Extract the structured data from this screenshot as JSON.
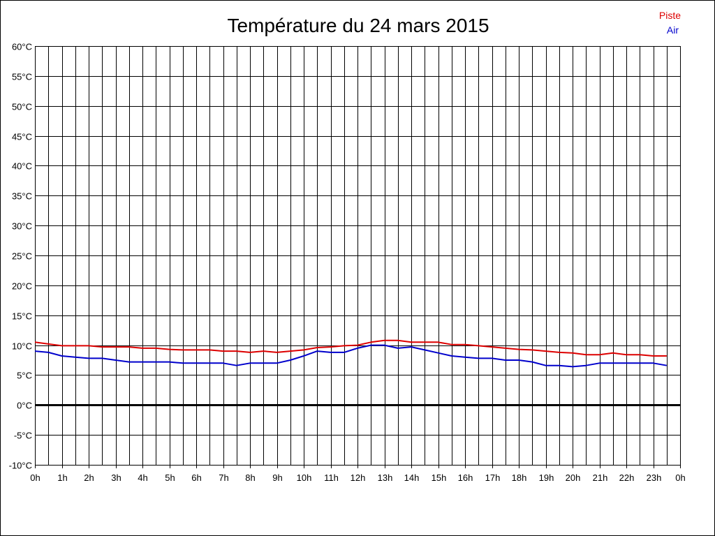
{
  "chart_data": {
    "type": "line",
    "title": "Température du 24 mars 2015",
    "xlabel": "",
    "ylabel": "",
    "ylim": [
      -10,
      60
    ],
    "xlim": [
      0,
      24
    ],
    "grid": true,
    "legend_position": "top-right",
    "y_ticks": [
      {
        "value": 60,
        "label": "60°C"
      },
      {
        "value": 55,
        "label": "55°C"
      },
      {
        "value": 50,
        "label": "50°C"
      },
      {
        "value": 45,
        "label": "45°C"
      },
      {
        "value": 40,
        "label": "40°C"
      },
      {
        "value": 35,
        "label": "35°C"
      },
      {
        "value": 30,
        "label": "30°C"
      },
      {
        "value": 25,
        "label": "25°C"
      },
      {
        "value": 20,
        "label": "20°C"
      },
      {
        "value": 15,
        "label": "15°C"
      },
      {
        "value": 10,
        "label": "10°C"
      },
      {
        "value": 5,
        "label": "5°C"
      },
      {
        "value": 0,
        "label": "0°C"
      },
      {
        "value": -5,
        "label": "-5°C"
      },
      {
        "value": -10,
        "label": "-10°C"
      }
    ],
    "x_ticks": [
      {
        "value": 0,
        "label": "0h"
      },
      {
        "value": 1,
        "label": "1h"
      },
      {
        "value": 2,
        "label": "2h"
      },
      {
        "value": 3,
        "label": "3h"
      },
      {
        "value": 4,
        "label": "4h"
      },
      {
        "value": 5,
        "label": "5h"
      },
      {
        "value": 6,
        "label": "6h"
      },
      {
        "value": 7,
        "label": "7h"
      },
      {
        "value": 8,
        "label": "8h"
      },
      {
        "value": 9,
        "label": "9h"
      },
      {
        "value": 10,
        "label": "10h"
      },
      {
        "value": 11,
        "label": "11h"
      },
      {
        "value": 12,
        "label": "12h"
      },
      {
        "value": 13,
        "label": "13h"
      },
      {
        "value": 14,
        "label": "14h"
      },
      {
        "value": 15,
        "label": "15h"
      },
      {
        "value": 16,
        "label": "16h"
      },
      {
        "value": 17,
        "label": "17h"
      },
      {
        "value": 18,
        "label": "18h"
      },
      {
        "value": 19,
        "label": "19h"
      },
      {
        "value": 20,
        "label": "20h"
      },
      {
        "value": 21,
        "label": "21h"
      },
      {
        "value": 22,
        "label": "22h"
      },
      {
        "value": 23,
        "label": "23h"
      },
      {
        "value": 24,
        "label": "0h"
      }
    ],
    "series": [
      {
        "name": "Piste",
        "color": "#dd0000",
        "points": [
          [
            0,
            10.5
          ],
          [
            0.5,
            10.2
          ],
          [
            1,
            9.9
          ],
          [
            1.5,
            9.9
          ],
          [
            2,
            9.9
          ],
          [
            2.5,
            9.7
          ],
          [
            3,
            9.7
          ],
          [
            3.5,
            9.7
          ],
          [
            4,
            9.5
          ],
          [
            4.5,
            9.5
          ],
          [
            5,
            9.3
          ],
          [
            5.5,
            9.2
          ],
          [
            6,
            9.2
          ],
          [
            6.5,
            9.2
          ],
          [
            7,
            9.0
          ],
          [
            7.5,
            9.0
          ],
          [
            8,
            8.8
          ],
          [
            8.5,
            9.0
          ],
          [
            9,
            8.8
          ],
          [
            9.5,
            9.0
          ],
          [
            10,
            9.2
          ],
          [
            10.5,
            9.6
          ],
          [
            11,
            9.7
          ],
          [
            11.5,
            9.9
          ],
          [
            12,
            10.0
          ],
          [
            12.5,
            10.5
          ],
          [
            13,
            10.8
          ],
          [
            13.5,
            10.8
          ],
          [
            14,
            10.5
          ],
          [
            14.5,
            10.5
          ],
          [
            15,
            10.5
          ],
          [
            15.5,
            10.1
          ],
          [
            16,
            10.1
          ],
          [
            16.5,
            9.9
          ],
          [
            17,
            9.7
          ],
          [
            17.5,
            9.5
          ],
          [
            18,
            9.3
          ],
          [
            18.5,
            9.2
          ],
          [
            19,
            9.0
          ],
          [
            19.5,
            8.8
          ],
          [
            20,
            8.7
          ],
          [
            20.5,
            8.4
          ],
          [
            21,
            8.4
          ],
          [
            21.5,
            8.7
          ],
          [
            22,
            8.4
          ],
          [
            22.5,
            8.4
          ],
          [
            23,
            8.2
          ],
          [
            23.5,
            8.2
          ]
        ]
      },
      {
        "name": "Air",
        "color": "#0000cc",
        "points": [
          [
            0,
            9.0
          ],
          [
            0.5,
            8.8
          ],
          [
            1,
            8.2
          ],
          [
            1.5,
            8.0
          ],
          [
            2,
            7.8
          ],
          [
            2.5,
            7.8
          ],
          [
            3,
            7.5
          ],
          [
            3.5,
            7.2
          ],
          [
            4,
            7.2
          ],
          [
            4.5,
            7.2
          ],
          [
            5,
            7.2
          ],
          [
            5.5,
            7.0
          ],
          [
            6,
            7.0
          ],
          [
            6.5,
            7.0
          ],
          [
            7,
            7.0
          ],
          [
            7.5,
            6.6
          ],
          [
            8,
            7.0
          ],
          [
            8.5,
            7.0
          ],
          [
            9,
            7.0
          ],
          [
            9.5,
            7.5
          ],
          [
            10,
            8.2
          ],
          [
            10.5,
            9.0
          ],
          [
            11,
            8.8
          ],
          [
            11.5,
            8.8
          ],
          [
            12,
            9.5
          ],
          [
            12.5,
            10.0
          ],
          [
            13,
            10.0
          ],
          [
            13.5,
            9.5
          ],
          [
            14,
            9.7
          ],
          [
            14.5,
            9.2
          ],
          [
            15,
            8.7
          ],
          [
            15.5,
            8.2
          ],
          [
            16,
            8.0
          ],
          [
            16.5,
            7.8
          ],
          [
            17,
            7.8
          ],
          [
            17.5,
            7.5
          ],
          [
            18,
            7.5
          ],
          [
            18.5,
            7.2
          ],
          [
            19,
            6.6
          ],
          [
            19.5,
            6.6
          ],
          [
            20,
            6.4
          ],
          [
            20.5,
            6.6
          ],
          [
            21,
            7.0
          ],
          [
            21.5,
            7.0
          ],
          [
            22,
            7.0
          ],
          [
            22.5,
            7.0
          ],
          [
            23,
            7.0
          ],
          [
            23.5,
            6.6
          ]
        ]
      }
    ]
  }
}
